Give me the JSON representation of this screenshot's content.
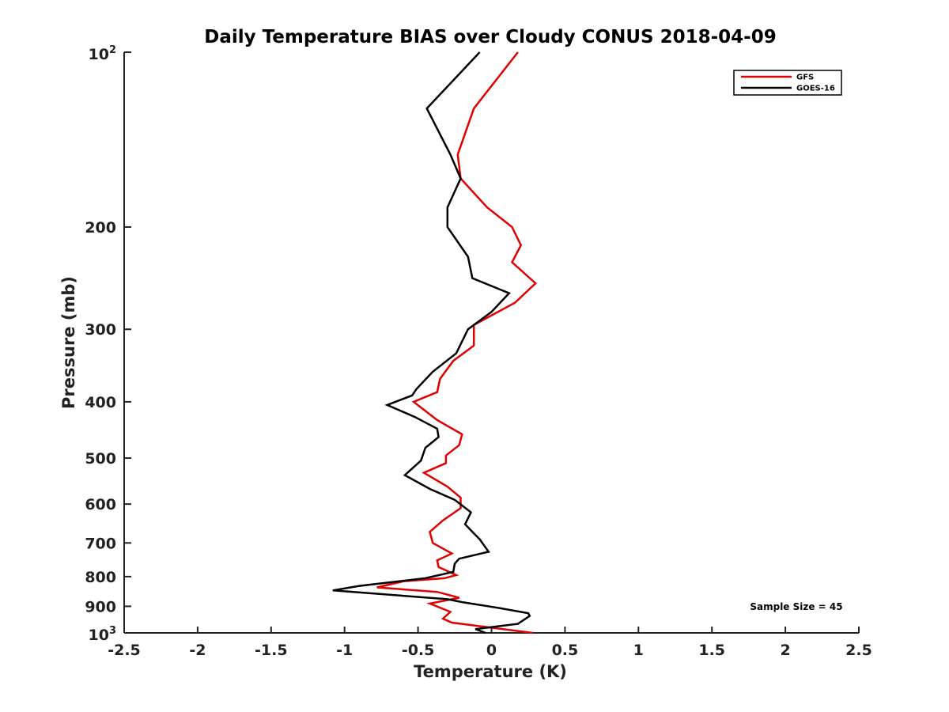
{
  "chart_data": {
    "type": "line",
    "title": "Daily Temperature BIAS over Cloudy CONUS 2018-04-09",
    "xlabel": "Temperature (K)",
    "ylabel": "Pressure (mb)",
    "xlim": [
      -2.5,
      2.5
    ],
    "ylim": [
      100,
      1000
    ],
    "y_scale": "log",
    "y_reversed": true,
    "grid": false,
    "legend_placement": "top-right",
    "x_ticks": [
      -2.5,
      -2,
      -1.5,
      -1,
      -0.5,
      0,
      0.5,
      1,
      1.5,
      2,
      2.5
    ],
    "x_tick_labels": [
      "-2.5",
      "-2",
      "-1.5",
      "-1",
      "-0.5",
      "0",
      "0.5",
      "1",
      "1.5",
      "2",
      "2.5"
    ],
    "y_ticks": [
      {
        "value": 100,
        "base": "10",
        "exp": "2"
      },
      {
        "value": 200,
        "label": "200"
      },
      {
        "value": 300,
        "label": "300"
      },
      {
        "value": 400,
        "label": "400"
      },
      {
        "value": 500,
        "label": "500"
      },
      {
        "value": 600,
        "label": "600"
      },
      {
        "value": 700,
        "label": "700"
      },
      {
        "value": 800,
        "label": "800"
      },
      {
        "value": 900,
        "label": "900"
      },
      {
        "value": 1000,
        "base": "10",
        "exp": "3"
      }
    ],
    "annotation": "Sample Size = 45",
    "series": [
      {
        "name": "GFS",
        "color": "#e00000",
        "points": [
          [
            0.18,
            100
          ],
          [
            -0.12,
            125
          ],
          [
            -0.23,
            150
          ],
          [
            -0.21,
            165
          ],
          [
            -0.03,
            185
          ],
          [
            0.14,
            200
          ],
          [
            0.2,
            215
          ],
          [
            0.14,
            230
          ],
          [
            0.3,
            250
          ],
          [
            0.16,
            270
          ],
          [
            -0.12,
            295
          ],
          [
            -0.12,
            320
          ],
          [
            -0.26,
            340
          ],
          [
            -0.35,
            365
          ],
          [
            -0.37,
            385
          ],
          [
            -0.53,
            400
          ],
          [
            -0.37,
            430
          ],
          [
            -0.2,
            455
          ],
          [
            -0.22,
            475
          ],
          [
            -0.31,
            495
          ],
          [
            -0.31,
            510
          ],
          [
            -0.46,
            530
          ],
          [
            -0.3,
            560
          ],
          [
            -0.21,
            585
          ],
          [
            -0.21,
            610
          ],
          [
            -0.33,
            640
          ],
          [
            -0.42,
            670
          ],
          [
            -0.4,
            700
          ],
          [
            -0.27,
            730
          ],
          [
            -0.37,
            750
          ],
          [
            -0.36,
            770
          ],
          [
            -0.24,
            795
          ],
          [
            -0.32,
            805
          ],
          [
            -0.6,
            815
          ],
          [
            -0.78,
            835
          ],
          [
            -0.37,
            850
          ],
          [
            -0.22,
            870
          ],
          [
            -0.42,
            890
          ],
          [
            -0.28,
            920
          ],
          [
            -0.33,
            945
          ],
          [
            -0.27,
            960
          ],
          [
            0.28,
            1000
          ]
        ]
      },
      {
        "name": "GOES-16",
        "color": "#000000",
        "points": [
          [
            -0.08,
            100
          ],
          [
            -0.44,
            125
          ],
          [
            -0.28,
            150
          ],
          [
            -0.21,
            165
          ],
          [
            -0.3,
            185
          ],
          [
            -0.3,
            200
          ],
          [
            -0.16,
            225
          ],
          [
            -0.13,
            245
          ],
          [
            0.12,
            260
          ],
          [
            0.0,
            280
          ],
          [
            -0.16,
            300
          ],
          [
            -0.24,
            330
          ],
          [
            -0.4,
            355
          ],
          [
            -0.51,
            380
          ],
          [
            -0.54,
            390
          ],
          [
            -0.71,
            405
          ],
          [
            -0.52,
            425
          ],
          [
            -0.37,
            445
          ],
          [
            -0.36,
            460
          ],
          [
            -0.45,
            480
          ],
          [
            -0.48,
            505
          ],
          [
            -0.59,
            535
          ],
          [
            -0.42,
            565
          ],
          [
            -0.25,
            590
          ],
          [
            -0.14,
            620
          ],
          [
            -0.18,
            650
          ],
          [
            -0.13,
            670
          ],
          [
            -0.08,
            690
          ],
          [
            -0.02,
            725
          ],
          [
            -0.22,
            745
          ],
          [
            -0.25,
            760
          ],
          [
            -0.26,
            785
          ],
          [
            -0.45,
            805
          ],
          [
            -0.9,
            830
          ],
          [
            -1.08,
            845
          ],
          [
            -0.3,
            875
          ],
          [
            -0.2,
            885
          ],
          [
            0.04,
            905
          ],
          [
            0.25,
            925
          ],
          [
            0.26,
            935
          ],
          [
            0.18,
            965
          ],
          [
            -0.11,
            985
          ],
          [
            -0.04,
            1000
          ]
        ]
      }
    ]
  }
}
